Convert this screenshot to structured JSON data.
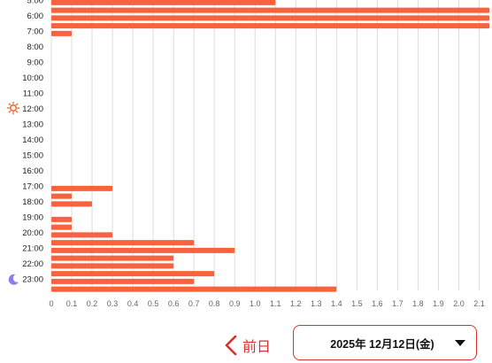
{
  "chart_data": {
    "type": "bar",
    "orientation": "horizontal",
    "xlim": [
      0,
      2.15
    ],
    "x_ticks": [
      "0",
      "0.1",
      "0.2",
      "0.3",
      "0.4",
      "0.5",
      "0.6",
      "0.7",
      "0.8",
      "0.9",
      "1.0",
      "1.1",
      "1.2",
      "1.3",
      "1.4",
      "1.5",
      "1.6",
      "1.7",
      "1.8",
      "1.9",
      "2.0",
      "2.1"
    ],
    "hour_labels": [
      "5:00",
      "6:00",
      "7:00",
      "8:00",
      "9:00",
      "10:00",
      "11:00",
      "12:00",
      "13:00",
      "14:00",
      "15:00",
      "16:00",
      "17:00",
      "18:00",
      "19:00",
      "20:00",
      "21:00",
      "22:00",
      "23:00"
    ],
    "grid": true,
    "bars": [
      {
        "slot": 0,
        "value": 1.1
      },
      {
        "slot": 1,
        "value": 2.15
      },
      {
        "slot": 2,
        "value": 2.15
      },
      {
        "slot": 3,
        "value": 2.15
      },
      {
        "slot": 4,
        "value": 0.1
      },
      {
        "slot": 24,
        "value": 0.3
      },
      {
        "slot": 25,
        "value": 0.1
      },
      {
        "slot": 26,
        "value": 0.2
      },
      {
        "slot": 28,
        "value": 0.1
      },
      {
        "slot": 29,
        "value": 0.1
      },
      {
        "slot": 30,
        "value": 0.3
      },
      {
        "slot": 31,
        "value": 0.7
      },
      {
        "slot": 32,
        "value": 0.9
      },
      {
        "slot": 33,
        "value": 0.6
      },
      {
        "slot": 34,
        "value": 0.6
      },
      {
        "slot": 35,
        "value": 0.8
      },
      {
        "slot": 36,
        "value": 0.7
      },
      {
        "slot": 37,
        "value": 1.4
      }
    ],
    "colors": {
      "bar": "#f8623c",
      "sun": "#f06a35",
      "moon": "#8f7df0"
    },
    "icons": {
      "noon": "sun-icon",
      "night": "moon-icon"
    }
  },
  "nav": {
    "prev_label": "前日",
    "date_label": "2025年 12月12日(金)"
  }
}
